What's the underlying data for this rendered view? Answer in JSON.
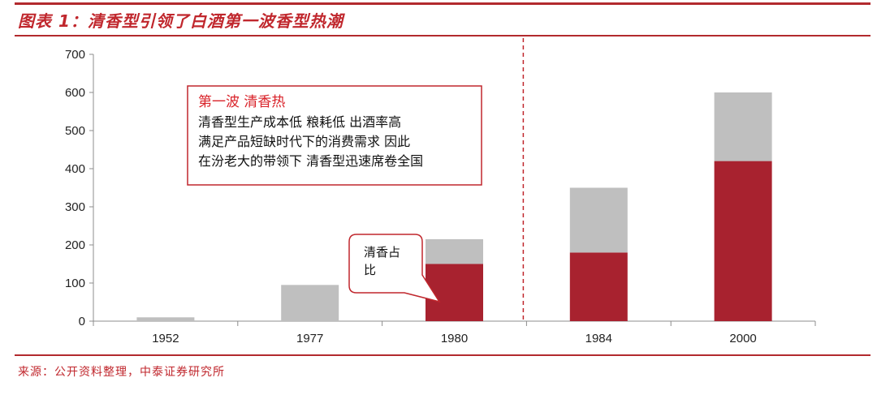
{
  "header": {
    "title": "图表 1：清香型引领了白酒第一波香型热潮"
  },
  "footer": {
    "source": "来源：公开资料整理，中泰证券研究所"
  },
  "chart_data": {
    "type": "bar",
    "stacked": true,
    "categories": [
      "1952",
      "1977",
      "1980",
      "1984",
      "2000"
    ],
    "series": [
      {
        "name": "清香占比",
        "color": "#a8222f",
        "values": [
          0,
          0,
          150,
          180,
          420
        ]
      },
      {
        "color": "#bfbfbf",
        "values": [
          10,
          95,
          65,
          170,
          180
        ]
      }
    ],
    "ylim": [
      0,
      700
    ],
    "yticks": [
      "0",
      "100",
      "200",
      "300",
      "400",
      "500",
      "600",
      "700"
    ],
    "annotation": {
      "title": "第一波   清香热",
      "lines": [
        "清香型生产成本低   粮耗低   出酒率高",
        "满足产品短缺时代下的消费需求   因此",
        "在汾老大的带领下   清香型迅速席卷全国"
      ]
    },
    "callout": {
      "lines": [
        "清香占",
        "比"
      ]
    },
    "divider_after_category": "1980"
  }
}
